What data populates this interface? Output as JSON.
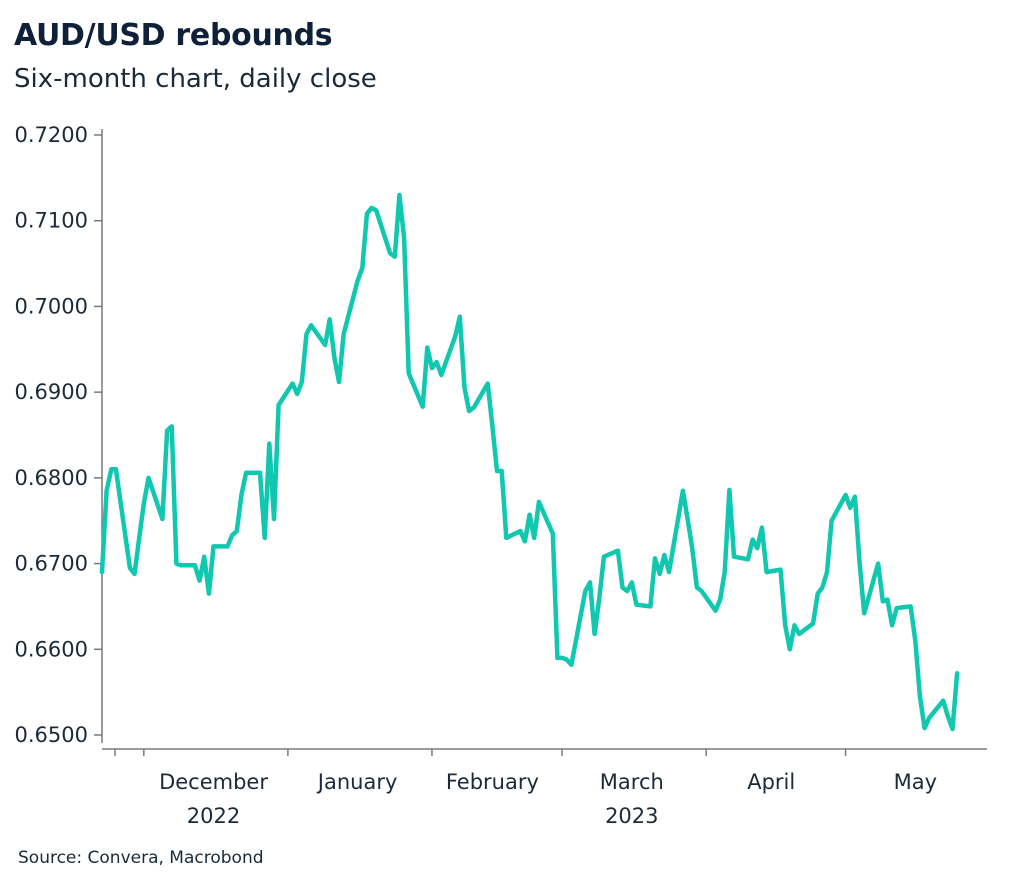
{
  "header": {
    "title": "AUD/USD rebounds",
    "subtitle": "Six-month chart, daily close"
  },
  "footer": {
    "source": "Source: Convera, Macrobond"
  },
  "colors": {
    "series": "#10c7b0",
    "axis": "#7a7a7a",
    "text": "#1b2a3a"
  },
  "chart_data": {
    "type": "line",
    "title": "AUD/USD rebounds",
    "subtitle": "Six-month chart, daily close",
    "xlabel": "",
    "ylabel": "",
    "ylim": [
      0.65,
      0.72
    ],
    "yticks": [
      "0.6500",
      "0.6600",
      "0.6700",
      "0.6800",
      "0.6900",
      "0.7000",
      "0.7100",
      "0.7200"
    ],
    "xlim": [
      "2022-11-22",
      "2023-05-31"
    ],
    "month_labels": [
      {
        "label": "December",
        "date": "2022-12-16"
      },
      {
        "label": "January",
        "date": "2023-01-16"
      },
      {
        "label": "February",
        "date": "2023-02-14"
      },
      {
        "label": "March",
        "date": "2023-03-16"
      },
      {
        "label": "April",
        "date": "2023-04-15"
      },
      {
        "label": "May",
        "date": "2023-05-16"
      }
    ],
    "year_labels": [
      {
        "label": "2022",
        "date": "2022-12-16"
      },
      {
        "label": "2023",
        "date": "2023-03-16"
      }
    ],
    "grid": false,
    "legend": "none",
    "series": [
      {
        "points": [
          [
            "2022-11-22",
            0.669
          ],
          [
            "2022-11-23",
            0.6785
          ],
          [
            "2022-11-24",
            0.681
          ],
          [
            "2022-11-25",
            0.681
          ],
          [
            "2022-11-28",
            0.6695
          ],
          [
            "2022-11-29",
            0.6688
          ],
          [
            "2022-11-30",
            0.673
          ],
          [
            "2022-12-01",
            0.677
          ],
          [
            "2022-12-02",
            0.68
          ],
          [
            "2022-12-05",
            0.6752
          ],
          [
            "2022-12-06",
            0.6855
          ],
          [
            "2022-12-07",
            0.686
          ],
          [
            "2022-12-08",
            0.67
          ],
          [
            "2022-12-09",
            0.6698
          ],
          [
            "2022-12-12",
            0.6698
          ],
          [
            "2022-12-13",
            0.668
          ],
          [
            "2022-12-14",
            0.6708
          ],
          [
            "2022-12-15",
            0.6665
          ],
          [
            "2022-12-16",
            0.672
          ],
          [
            "2022-12-19",
            0.672
          ],
          [
            "2022-12-20",
            0.6733
          ],
          [
            "2022-12-21",
            0.6738
          ],
          [
            "2022-12-22",
            0.678
          ],
          [
            "2022-12-23",
            0.6806
          ],
          [
            "2022-12-26",
            0.6806
          ],
          [
            "2022-12-27",
            0.673
          ],
          [
            "2022-12-28",
            0.684
          ],
          [
            "2022-12-29",
            0.6752
          ],
          [
            "2022-12-30",
            0.6885
          ],
          [
            "2023-01-02",
            0.691
          ],
          [
            "2023-01-03",
            0.6898
          ],
          [
            "2023-01-04",
            0.6912
          ],
          [
            "2023-01-05",
            0.6968
          ],
          [
            "2023-01-06",
            0.6978
          ],
          [
            "2023-01-09",
            0.6955
          ],
          [
            "2023-01-10",
            0.6985
          ],
          [
            "2023-01-11",
            0.694
          ],
          [
            "2023-01-12",
            0.6912
          ],
          [
            "2023-01-13",
            0.6968
          ],
          [
            "2023-01-16",
            0.703
          ],
          [
            "2023-01-17",
            0.7045
          ],
          [
            "2023-01-18",
            0.7108
          ],
          [
            "2023-01-19",
            0.7115
          ],
          [
            "2023-01-20",
            0.7112
          ],
          [
            "2023-01-23",
            0.7062
          ],
          [
            "2023-01-24",
            0.7058
          ],
          [
            "2023-01-25",
            0.713
          ],
          [
            "2023-01-26",
            0.708
          ],
          [
            "2023-01-27",
            0.6922
          ],
          [
            "2023-01-30",
            0.6883
          ],
          [
            "2023-01-31",
            0.6952
          ],
          [
            "2023-02-01",
            0.6928
          ],
          [
            "2023-02-02",
            0.6935
          ],
          [
            "2023-02-03",
            0.692
          ],
          [
            "2023-02-06",
            0.6965
          ],
          [
            "2023-02-07",
            0.6988
          ],
          [
            "2023-02-08",
            0.6905
          ],
          [
            "2023-02-09",
            0.6878
          ],
          [
            "2023-02-10",
            0.6882
          ],
          [
            "2023-02-13",
            0.691
          ],
          [
            "2023-02-14",
            0.686
          ],
          [
            "2023-02-15",
            0.6808
          ],
          [
            "2023-02-16",
            0.6808
          ],
          [
            "2023-02-17",
            0.673
          ],
          [
            "2023-02-20",
            0.6738
          ],
          [
            "2023-02-21",
            0.6726
          ],
          [
            "2023-02-22",
            0.6757
          ],
          [
            "2023-02-23",
            0.673
          ],
          [
            "2023-02-24",
            0.6772
          ],
          [
            "2023-02-27",
            0.6735
          ],
          [
            "2023-02-28",
            0.659
          ],
          [
            "2023-03-01",
            0.659
          ],
          [
            "2023-03-02",
            0.6588
          ],
          [
            "2023-03-03",
            0.6582
          ],
          [
            "2023-03-06",
            0.6668
          ],
          [
            "2023-03-07",
            0.6678
          ],
          [
            "2023-03-08",
            0.6618
          ],
          [
            "2023-03-09",
            0.666
          ],
          [
            "2023-03-10",
            0.6708
          ],
          [
            "2023-03-13",
            0.6715
          ],
          [
            "2023-03-14",
            0.6672
          ],
          [
            "2023-03-15",
            0.6668
          ],
          [
            "2023-03-16",
            0.6678
          ],
          [
            "2023-03-17",
            0.6652
          ],
          [
            "2023-03-20",
            0.665
          ],
          [
            "2023-03-21",
            0.6706
          ],
          [
            "2023-03-22",
            0.6688
          ],
          [
            "2023-03-23",
            0.671
          ],
          [
            "2023-03-24",
            0.669
          ],
          [
            "2023-03-27",
            0.6785
          ],
          [
            "2023-03-28",
            0.6752
          ],
          [
            "2023-03-29",
            0.6718
          ],
          [
            "2023-03-30",
            0.6672
          ],
          [
            "2023-03-31",
            0.6668
          ],
          [
            "2023-04-03",
            0.6645
          ],
          [
            "2023-04-04",
            0.6658
          ],
          [
            "2023-04-05",
            0.669
          ],
          [
            "2023-04-06",
            0.6786
          ],
          [
            "2023-04-07",
            0.6708
          ],
          [
            "2023-04-10",
            0.6705
          ],
          [
            "2023-04-11",
            0.6728
          ],
          [
            "2023-04-12",
            0.6718
          ],
          [
            "2023-04-13",
            0.6742
          ],
          [
            "2023-04-14",
            0.669
          ],
          [
            "2023-04-17",
            0.6693
          ],
          [
            "2023-04-18",
            0.6628
          ],
          [
            "2023-04-19",
            0.66
          ],
          [
            "2023-04-20",
            0.6628
          ],
          [
            "2023-04-21",
            0.6618
          ],
          [
            "2023-04-24",
            0.663
          ],
          [
            "2023-04-25",
            0.6665
          ],
          [
            "2023-04-26",
            0.6672
          ],
          [
            "2023-04-27",
            0.669
          ],
          [
            "2023-04-28",
            0.675
          ],
          [
            "2023-05-01",
            0.678
          ],
          [
            "2023-05-02",
            0.6765
          ],
          [
            "2023-05-03",
            0.6778
          ],
          [
            "2023-05-04",
            0.6702
          ],
          [
            "2023-05-05",
            0.6642
          ],
          [
            "2023-05-08",
            0.67
          ],
          [
            "2023-05-09",
            0.6656
          ],
          [
            "2023-05-10",
            0.6658
          ],
          [
            "2023-05-11",
            0.6628
          ],
          [
            "2023-05-12",
            0.6648
          ],
          [
            "2023-05-15",
            0.665
          ],
          [
            "2023-05-16",
            0.661
          ],
          [
            "2023-05-17",
            0.6545
          ],
          [
            "2023-05-18",
            0.6508
          ],
          [
            "2023-05-19",
            0.652
          ],
          [
            "2023-05-22",
            0.654
          ],
          [
            "2023-05-23",
            0.6522
          ],
          [
            "2023-05-24",
            0.6507
          ],
          [
            "2023-05-25",
            0.6572
          ]
        ]
      }
    ]
  }
}
